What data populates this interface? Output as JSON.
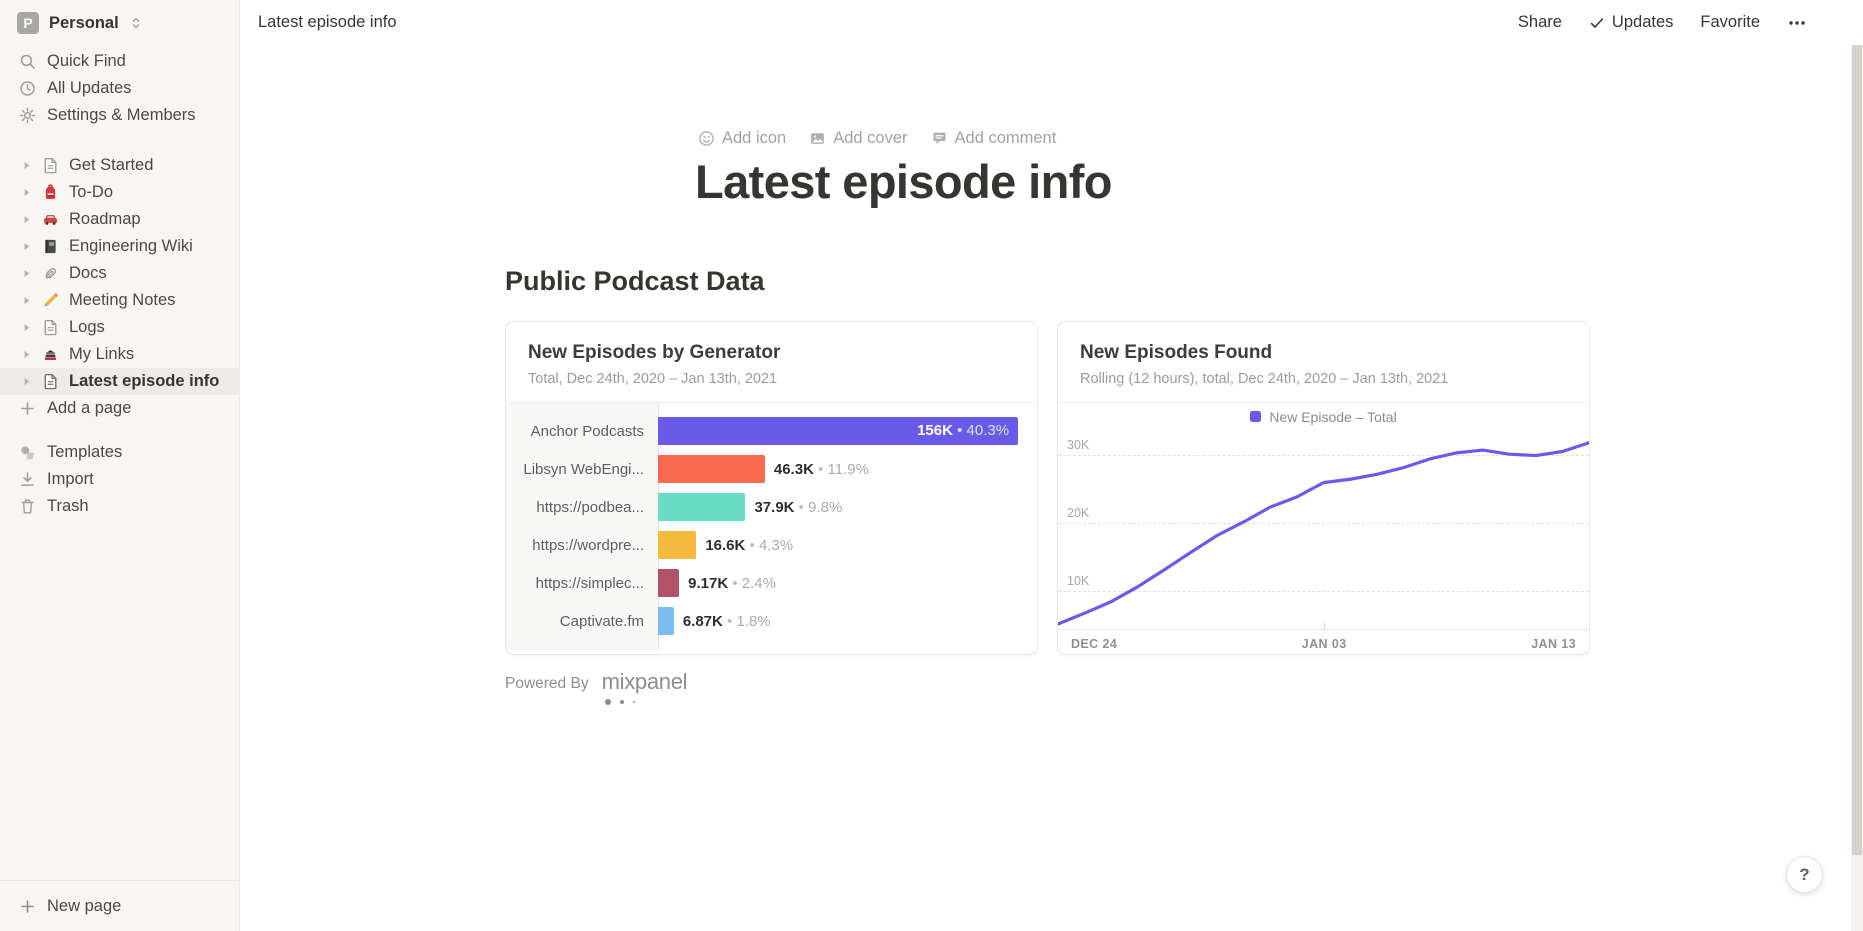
{
  "workspace": {
    "name": "Personal",
    "avatar_letter": "P"
  },
  "sidebar": {
    "top_items": [
      {
        "label": "Quick Find",
        "icon": "search-icon"
      },
      {
        "label": "All Updates",
        "icon": "clock-icon"
      },
      {
        "label": "Settings & Members",
        "icon": "gear-icon"
      }
    ],
    "pages": [
      {
        "label": "Get Started",
        "icon": "page-icon",
        "selected": false
      },
      {
        "label": "To-Do",
        "icon": "backpack-icon",
        "selected": false
      },
      {
        "label": "Roadmap",
        "icon": "car-icon",
        "selected": false
      },
      {
        "label": "Engineering Wiki",
        "icon": "notebook-icon",
        "selected": false
      },
      {
        "label": "Docs",
        "icon": "paperclip-icon",
        "selected": false
      },
      {
        "label": "Meeting Notes",
        "icon": "pencil-icon",
        "selected": false
      },
      {
        "label": "Logs",
        "icon": "page-icon",
        "selected": false
      },
      {
        "label": "My Links",
        "icon": "books-icon",
        "selected": false
      },
      {
        "label": "Latest episode info",
        "icon": "page-icon",
        "selected": true
      }
    ],
    "add_page_label": "Add a page",
    "bottom_items": [
      {
        "label": "Templates",
        "icon": "templates-icon"
      },
      {
        "label": "Import",
        "icon": "import-icon"
      },
      {
        "label": "Trash",
        "icon": "trash-icon"
      }
    ],
    "new_page_label": "New page"
  },
  "topbar": {
    "breadcrumb": "Latest episode info",
    "share_label": "Share",
    "updates_label": "Updates",
    "favorite_label": "Favorite"
  },
  "page": {
    "add_icon_label": "Add icon",
    "add_cover_label": "Add cover",
    "add_comment_label": "Add comment",
    "title": "Latest episode info",
    "section_heading": "Public Podcast Data",
    "powered_by": "Powered By",
    "mixpanel_label": "mixpanel"
  },
  "help_label": "?",
  "chart_data": [
    {
      "type": "bar",
      "orientation": "horizontal",
      "title": "New Episodes by Generator",
      "subtitle": "Total, Dec 24th, 2020 – Jan 13th, 2021",
      "categories": [
        "Anchor Podcasts",
        "Libsyn WebEngi...",
        "https://podbea...",
        "https://wordpre...",
        "https://simplec...",
        "Captivate.fm"
      ],
      "values": [
        156000,
        46300,
        37900,
        16600,
        9170,
        6870
      ],
      "value_labels": [
        "156K",
        "46.3K",
        "37.9K",
        "16.6K",
        "9.17K",
        "6.87K"
      ],
      "percent_labels": [
        "40.3%",
        "11.9%",
        "9.8%",
        "4.3%",
        "2.4%",
        "1.8%"
      ],
      "bar_colors": [
        "#6A5AE8",
        "#F8694D",
        "#68DCC5",
        "#F6BB3E",
        "#B25369",
        "#7ABDEE"
      ],
      "separator": "•",
      "grid": false
    },
    {
      "type": "line",
      "title": "New Episodes Found",
      "subtitle": "Rolling (12 hours), total, Dec 24th, 2020 – Jan 13th, 2021",
      "legend": [
        {
          "label": "New Episode – Total",
          "color": "#6A5AE8"
        }
      ],
      "legend_position": "top-center",
      "line_color": "#7156EE",
      "x": [
        "Dec 24",
        "Dec 25",
        "Dec 26",
        "Dec 27",
        "Dec 28",
        "Dec 29",
        "Dec 30",
        "Dec 31",
        "Jan 01",
        "Jan 02",
        "Jan 03",
        "Jan 04",
        "Jan 05",
        "Jan 06",
        "Jan 07",
        "Jan 08",
        "Jan 09",
        "Jan 10",
        "Jan 11",
        "Jan 12",
        "Jan 13"
      ],
      "values": [
        5000,
        6600,
        8300,
        10500,
        13000,
        15600,
        18100,
        20100,
        22300,
        23800,
        25900,
        26400,
        27100,
        28100,
        29400,
        30300,
        30700,
        30100,
        29900,
        30500,
        31800
      ],
      "x_tick_labels": [
        "DEC 24",
        "JAN 03",
        "JAN 13"
      ],
      "y_ticks": [
        {
          "label": "10K",
          "value": 10000
        },
        {
          "label": "20K",
          "value": 20000
        },
        {
          "label": "30K",
          "value": 30000
        }
      ],
      "ylim": [
        4300,
        33500
      ],
      "grid": "horizontal-dashed"
    }
  ]
}
